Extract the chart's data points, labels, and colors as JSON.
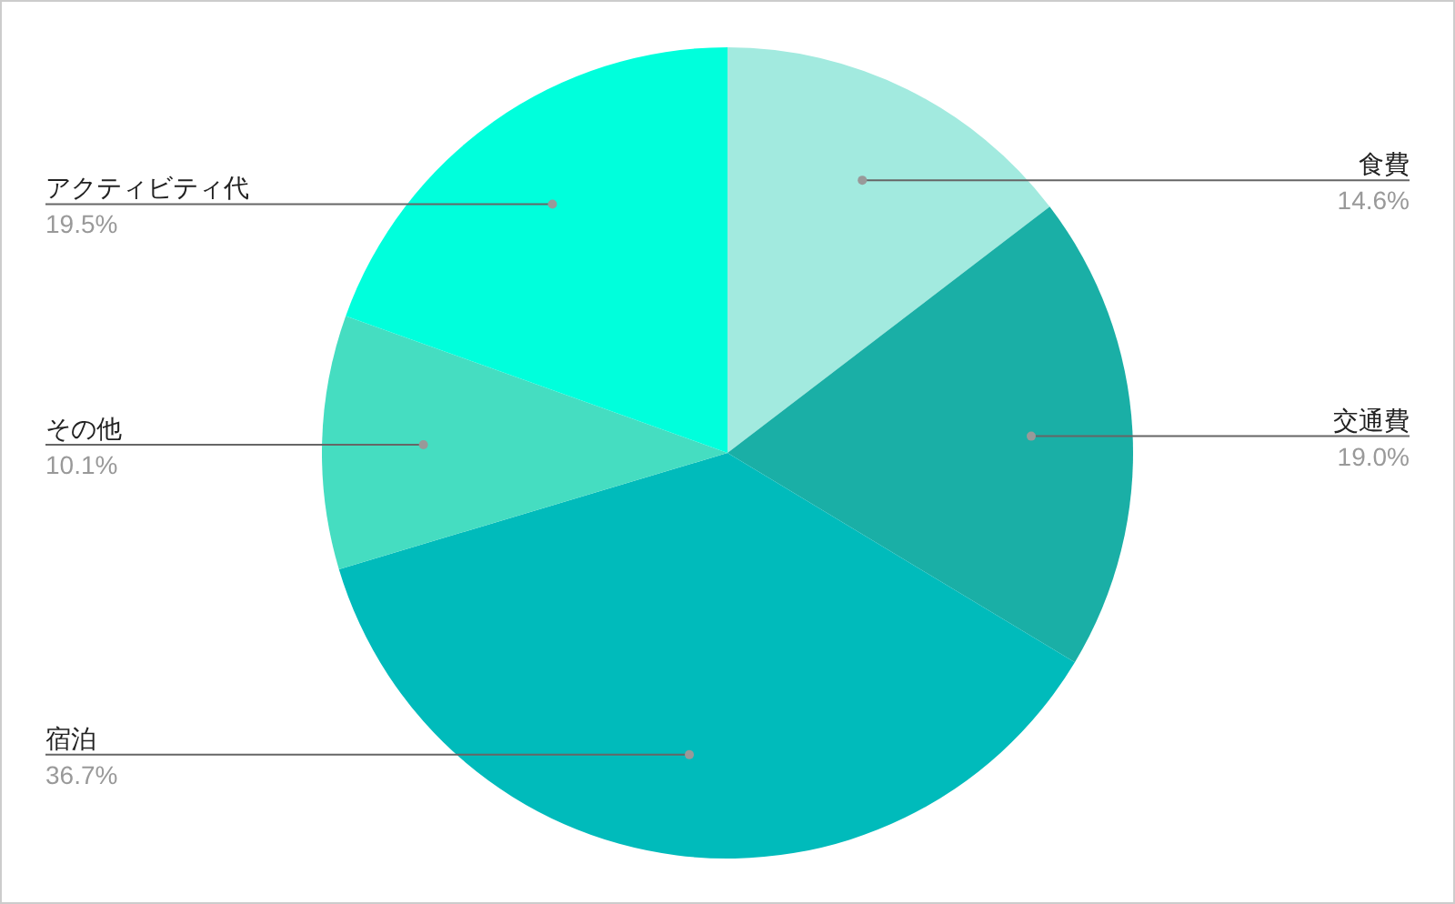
{
  "chart_data": {
    "type": "pie",
    "categories": [
      "食費",
      "交通費",
      "宿泊",
      "その他",
      "アクティビティ代"
    ],
    "values": [
      14.6,
      19.0,
      36.7,
      10.1,
      19.5
    ],
    "value_labels": [
      "14.6%",
      "19.0%",
      "36.7%",
      "10.1%",
      "19.5%"
    ],
    "colors": [
      "#a2eadf",
      "#1aafa6",
      "#00bbbb",
      "#45ddc1",
      "#00ffdc"
    ]
  }
}
